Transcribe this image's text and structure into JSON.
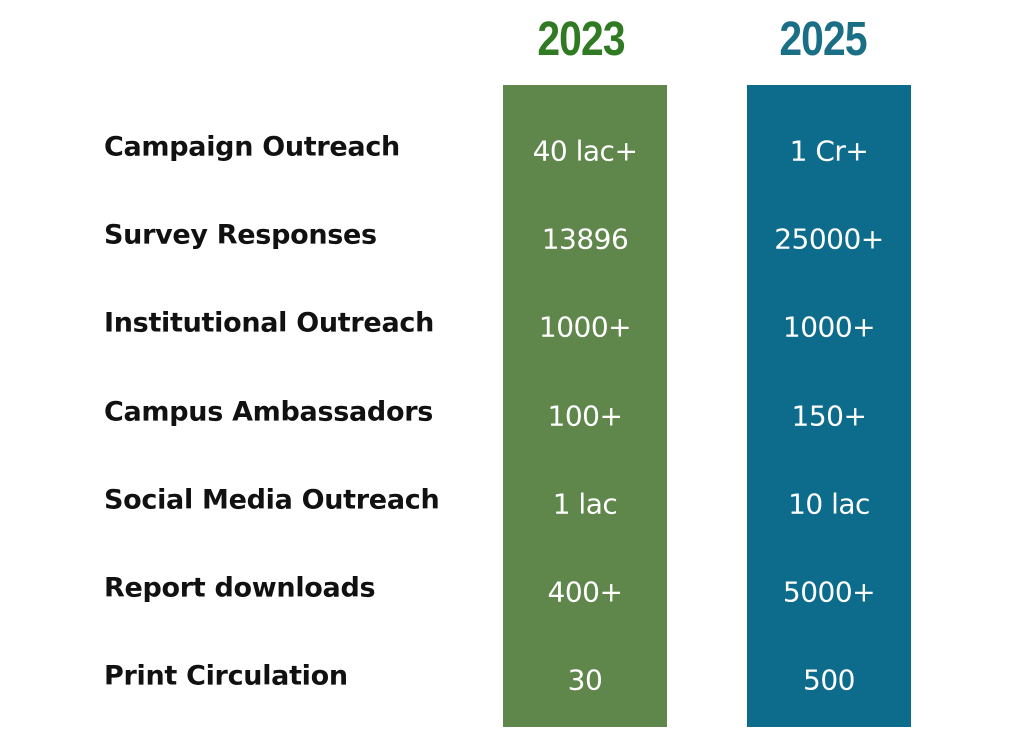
{
  "table": {
    "columns": [
      "2023",
      "2025"
    ],
    "rows": [
      [
        "Campaign Outreach",
        "40 lac+",
        "1 Cr+"
      ],
      [
        "Survey Responses",
        "13896",
        "25000+"
      ],
      [
        "Institutional Outreach",
        "1000+",
        "1000+"
      ],
      [
        "Campus Ambassadors",
        "100+",
        "150+"
      ],
      [
        "Social Media Outreach",
        "1 lac",
        "10 lac"
      ],
      [
        "Report downloads",
        "400+",
        "5000+"
      ],
      [
        "Print Circulation",
        "30",
        "500"
      ]
    ]
  }
}
